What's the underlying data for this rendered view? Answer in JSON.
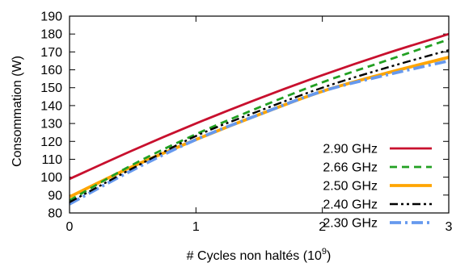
{
  "chart_data": {
    "type": "line",
    "xlabel": "# Cycles non haltés (10",
    "xlabel_exponent": "9",
    "xlabel_suffix": ")",
    "ylabel": "Consommation (W)",
    "xlim": [
      0,
      3
    ],
    "ylim": [
      80,
      190
    ],
    "xticks": [
      0,
      1,
      2,
      3
    ],
    "yticks": [
      80,
      90,
      100,
      110,
      120,
      130,
      140,
      150,
      160,
      170,
      180,
      190
    ],
    "grid": false,
    "legend_position": "bottom-right",
    "series": [
      {
        "name": "2.90 GHz",
        "color": "#c8102e",
        "dash": "solid",
        "x": [
          0,
          0.5,
          1,
          1.5,
          2,
          2.5,
          3
        ],
        "y": [
          99,
          115,
          130,
          144,
          157,
          169,
          180
        ]
      },
      {
        "name": "2.66 GHz",
        "color": "#22a022",
        "dash": "dash",
        "x": [
          0,
          0.5,
          1,
          1.5,
          2,
          2.5,
          3
        ],
        "y": [
          87,
          107,
          124,
          139,
          153,
          165,
          177
        ]
      },
      {
        "name": "2.50 GHz",
        "color": "#ffa500",
        "dash": "solid",
        "x": [
          0,
          0.5,
          1,
          1.5,
          2,
          2.5,
          3
        ],
        "y": [
          89,
          106,
          121,
          135,
          148,
          158,
          167
        ]
      },
      {
        "name": "2.40 GHz",
        "color": "#000000",
        "dash": "dashdotdot",
        "x": [
          0,
          0.5,
          1,
          1.5,
          2,
          2.5,
          3
        ],
        "y": [
          86,
          105,
          123,
          137,
          150,
          161,
          171
        ]
      },
      {
        "name": "2.30 GHz",
        "color": "#6699ee",
        "dash": "dashdot",
        "x": [
          0,
          0.5,
          1,
          1.5,
          2,
          2.5,
          3
        ],
        "y": [
          85,
          104,
          121,
          135,
          148,
          157,
          165
        ]
      }
    ]
  }
}
